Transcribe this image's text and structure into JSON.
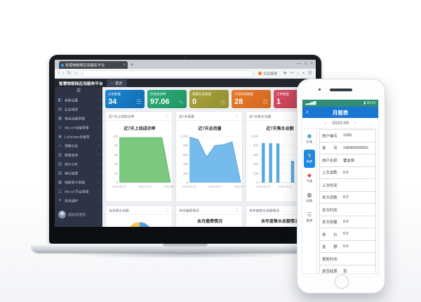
{
  "icons": {
    "panel_menu": "⋮",
    "item_chevron": "‹"
  },
  "browser": {
    "tab": {
      "title": "智慧物联网应用服务平台",
      "close": "×"
    },
    "new_tab": "+",
    "window_controls": [
      {
        "name": "minimize",
        "glyph": "—"
      },
      {
        "name": "maximize",
        "glyph": "□"
      },
      {
        "name": "close",
        "glyph": "×"
      }
    ],
    "toolbar": {
      "nav": [
        {
          "name": "back",
          "glyph": "‹"
        },
        {
          "name": "forward",
          "glyph": "›"
        },
        {
          "name": "reload",
          "glyph": "↻"
        },
        {
          "name": "home",
          "glyph": "⌂"
        }
      ],
      "login_label": "点此登录",
      "right_icons": [
        {
          "name": "favorite-star",
          "glyph": "★"
        },
        {
          "name": "screenshot-scissors",
          "glyph": "✂"
        },
        {
          "name": "download-arrow",
          "glyph": "↓"
        },
        {
          "name": "add",
          "glyph": "+"
        },
        {
          "name": "menu",
          "glyph": "☰"
        }
      ]
    }
  },
  "app": {
    "title": "智慧物联网应用服务平台",
    "active_tab": {
      "icon": "▭",
      "label": "首页"
    },
    "sidebar": {
      "toggle": "☰",
      "items": [
        {
          "name": "params",
          "glyph": "◧",
          "label": "参数设置"
        },
        {
          "name": "owners",
          "glyph": "▤",
          "label": "业主档案"
        },
        {
          "name": "meter-devices",
          "glyph": "▦",
          "label": "表具设备管理"
        },
        {
          "name": "nbiot-devices",
          "glyph": "◎",
          "label": "NB-IoT设备管理"
        },
        {
          "name": "lorawan-devices",
          "glyph": "◉",
          "label": "LoRaWan设备管理"
        },
        {
          "name": "alerts",
          "glyph": "⚠",
          "label": "预警信息"
        },
        {
          "name": "data-query",
          "glyph": "▥",
          "label": "数据查询"
        },
        {
          "name": "statistics",
          "glyph": "▨",
          "label": "统计分析"
        },
        {
          "name": "settlement",
          "glyph": "▧",
          "label": "单位结算"
        },
        {
          "name": "sim-cards",
          "glyph": "▩",
          "label": "物联网卡管理"
        },
        {
          "name": "nbiot-platform",
          "glyph": "◫",
          "label": "NB-IoT平台管理"
        },
        {
          "name": "maintenance",
          "glyph": "✦",
          "label": "系统维护"
        }
      ],
      "user_label": "超级管理员"
    },
    "stats": [
      {
        "name": "meter-count",
        "label": "水表数量",
        "value": "34",
        "icon": "☰",
        "color": "#1c86cf",
        "color2": "#0f6cb4"
      },
      {
        "name": "read-success-rate",
        "label": "抄表成功率",
        "value": "97.06",
        "icon": "∿",
        "color": "#2fae7a",
        "color2": "#1f9465"
      },
      {
        "name": "alarm-count",
        "label": "报警信息数量",
        "value": "0",
        "icon": "◎",
        "color": "#a8a33c",
        "color2": "#948f2f"
      },
      {
        "name": "today-read-count",
        "label": "今日抄表数量",
        "value": "28",
        "icon": "☰",
        "color": "#e67c2e",
        "color2": "#d3661c"
      },
      {
        "name": "work-order-count",
        "label": "工单数量",
        "value": "1",
        "icon": "▤",
        "color": "#d44f62",
        "color2": "#c03a50"
      }
    ]
  },
  "chart_data": [
    {
      "name": "week-online-rate",
      "type": "area",
      "panel_title": "近7天上线成功率",
      "title": "近7天上线成功率",
      "x": [
        "2020-09-24",
        "2020-09-25",
        "2020-09-26",
        "2020-09-27",
        "2020-09-28",
        "2020-09-29",
        "2020-09-30"
      ],
      "values": [
        97,
        97,
        97,
        97,
        97,
        97,
        0
      ],
      "ylim": [
        0,
        100
      ],
      "yticks": [
        0,
        20,
        40,
        60,
        80,
        100
      ],
      "ytick_labels": [
        "0",
        "20",
        "40",
        "60",
        "80",
        "100"
      ],
      "xtick_idx": [
        0,
        3,
        6
      ],
      "fill": "#6fc271",
      "stroke": "#46a84c",
      "grid": true,
      "legend": "none"
    },
    {
      "name": "week-usage",
      "type": "area",
      "panel_title": "近7天用量",
      "title": "近7天总用量",
      "x": [
        "2020-09-24",
        "2020-09-25",
        "2020-09-26",
        "2020-09-27",
        "2020-09-28",
        "2020-09-29",
        "2020-09-30"
      ],
      "values": [
        980,
        930,
        550,
        800,
        820,
        880,
        0
      ],
      "ylim": [
        0,
        1000
      ],
      "yticks": [
        0,
        200,
        400,
        600,
        800,
        1000
      ],
      "ytick_labels": [
        "0",
        "200",
        "400",
        "600",
        "800",
        "1,000"
      ],
      "xtick_idx": [
        0,
        3,
        6
      ],
      "fill": "#66b5ea",
      "stroke": "#3f97d8",
      "grid": true,
      "legend": "none"
    },
    {
      "name": "week-sales",
      "type": "bar",
      "panel_title": "近7天售水总额",
      "title": "近7天售水总额",
      "x": [
        "2020-09-24",
        "2020-09-25",
        "2020-09-26",
        "2020-09-27",
        "2020-09-28",
        "2020-09-29",
        "2020-09-30"
      ],
      "values": [
        855,
        850,
        845,
        0,
        470,
        760,
        0
      ],
      "ylim": [
        0,
        1000
      ],
      "yticks": [
        0,
        200,
        400,
        600,
        800,
        1000
      ],
      "ytick_labels": [
        "0",
        "200",
        "400",
        "600",
        "800",
        "1,000"
      ],
      "xtick_idx": [
        0,
        3
      ],
      "fill": "#5aaae0",
      "stroke": "#3f97d8",
      "grid": true,
      "legend": "none"
    },
    {
      "name": "month-sales-donut",
      "type": "donut",
      "panel_title": "当月售水总额",
      "segments": [
        {
          "value": 50,
          "color": "#f6c64a"
        },
        {
          "value": 50,
          "color": "#4da3e8"
        }
      ]
    },
    {
      "name": "month-payment",
      "type": "stub",
      "panel_title": "本月缴费情况",
      "title": "本月缴费情况",
      "ytop_label": "120,000"
    },
    {
      "name": "year-sales",
      "type": "stub",
      "panel_title": "本年度售水总额情况",
      "title": "本年度售水总额情况",
      "ytop_label": "40,000"
    }
  ],
  "phone": {
    "status": {
      "left": "▂▃▅▇",
      "right": "▮ 10:14"
    },
    "nav": {
      "back": "‹",
      "title": "月报表"
    },
    "date": {
      "prev": "‹",
      "value": "2020-09",
      "next": "›"
    },
    "rail": [
      {
        "name": "water-meter",
        "glyph": "◉",
        "label": "水表",
        "color": "#2f9bd6",
        "selected": false
      },
      {
        "name": "electric-meter",
        "glyph": "↯",
        "label": "电表",
        "color": "#ffd54a",
        "selected": true
      },
      {
        "name": "gas-meter",
        "glyph": "◆",
        "label": "气表",
        "color": "#e05548",
        "selected": false
      },
      {
        "name": "heat-meter",
        "glyph": "◍",
        "label": "热表",
        "color": "#37474f",
        "selected": false
      },
      {
        "name": "report",
        "glyph": "☰",
        "label": "报表",
        "color": "#8a949c",
        "selected": false
      }
    ],
    "rows": [
      {
        "label": "用户编号",
        "value": "1326"
      },
      {
        "label": "表　　号",
        "value": "196000000052"
      },
      {
        "label": "用户名称",
        "value": "曹会林"
      },
      {
        "label": "上次读数",
        "value": "0.0"
      },
      {
        "label": "上次时间",
        "value": ""
      },
      {
        "label": "本次读数",
        "value": "0.0"
      },
      {
        "label": "本次时间",
        "value": ""
      },
      {
        "label": "本次用量",
        "value": "0.0"
      },
      {
        "label": "单　　价",
        "value": "0.0"
      },
      {
        "label": "金　　额",
        "value": "0.0"
      },
      {
        "label": "更新时间",
        "value": ""
      },
      {
        "label": "是否结算",
        "value": "否"
      }
    ]
  }
}
